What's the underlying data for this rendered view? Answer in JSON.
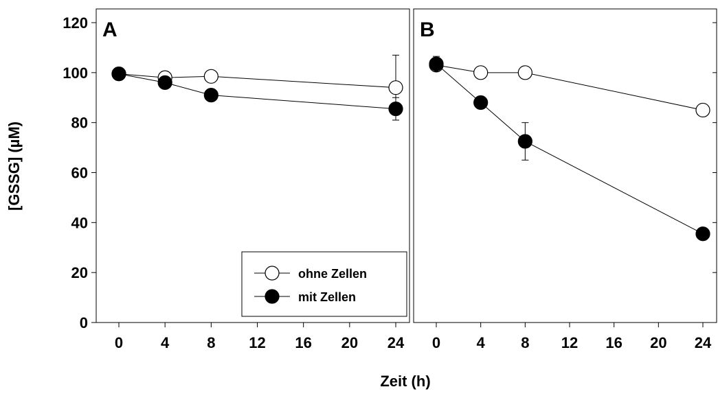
{
  "chart_data": {
    "type": "line",
    "ylabel": "[GSSG] (µM)",
    "xlabel": "Zeit (h)",
    "ylim": [
      0,
      120
    ],
    "yticks": [
      0,
      20,
      40,
      60,
      80,
      100,
      120
    ],
    "xlim": [
      -2,
      25
    ],
    "xticks": [
      0,
      4,
      8,
      12,
      16,
      20,
      24
    ],
    "grid": false,
    "legend": {
      "placement": "bottom-right of panel A",
      "entries": [
        "ohne Zellen",
        "mit Zellen"
      ]
    },
    "panels": [
      {
        "label": "A",
        "series": [
          {
            "name": "ohne Zellen",
            "marker": "open-circle",
            "x": [
              0,
              4,
              8,
              24
            ],
            "y": [
              99.5,
              98,
              98.5,
              94
            ],
            "err": [
              0,
              0,
              0,
              13
            ]
          },
          {
            "name": "mit Zellen",
            "marker": "filled-circle",
            "x": [
              0,
              4,
              8,
              24
            ],
            "y": [
              99.5,
              96,
              91,
              85.5
            ],
            "err": [
              0,
              0,
              0,
              4.5
            ]
          }
        ]
      },
      {
        "label": "B",
        "series": [
          {
            "name": "ohne Zellen",
            "marker": "open-circle",
            "x": [
              0,
              4,
              8,
              24
            ],
            "y": [
              103,
              100,
              100,
              85
            ],
            "err": [
              0,
              0,
              0,
              0
            ]
          },
          {
            "name": "mit Zellen",
            "marker": "filled-circle",
            "x": [
              0,
              4,
              8,
              24
            ],
            "y": [
              103.5,
              88,
              72.5,
              35.5
            ],
            "err": [
              3,
              0,
              7.5,
              0
            ]
          }
        ]
      }
    ]
  },
  "colors": {
    "open_fill": "#ffffff",
    "filled_fill": "#000000",
    "stroke": "#000000"
  }
}
